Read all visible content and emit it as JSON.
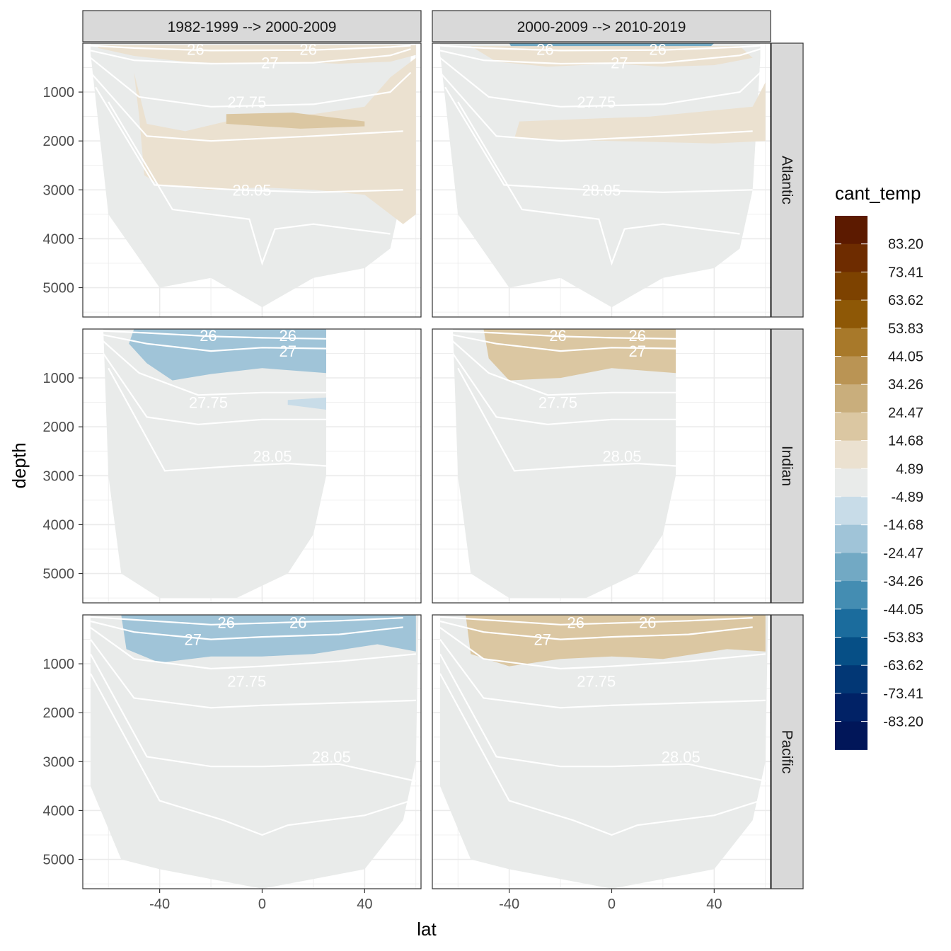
{
  "chart_data": {
    "type": "heatmap",
    "facet_columns": [
      "1982-1999 --> 2000-2009",
      "2000-2009 --> 2010-2019"
    ],
    "facet_rows": [
      "Atlantic",
      "Indian",
      "Pacific"
    ],
    "xlabel": "lat",
    "ylabel": "depth",
    "x_ticks": [
      -40,
      0,
      40
    ],
    "x_tick_labels": [
      "-40",
      "0",
      "40"
    ],
    "xlim": [
      -70,
      62
    ],
    "y_ticks": [
      1000,
      2000,
      3000,
      4000,
      5000
    ],
    "y_tick_labels": [
      "1000",
      "2000",
      "3000",
      "4000",
      "5000"
    ],
    "ylim": [
      5600,
      0
    ],
    "y_reversed": true,
    "grid": true,
    "legend": {
      "title": "cant_temp",
      "placement": "right",
      "labels": [
        "83.20",
        "73.41",
        "63.62",
        "53.83",
        "44.05",
        "34.26",
        "24.47",
        "14.68",
        "4.89",
        "-4.89",
        "-14.68",
        "-24.47",
        "-34.26",
        "-44.05",
        "-53.83",
        "-63.62",
        "-73.41",
        "-83.20"
      ],
      "colors": [
        "#5c1a00",
        "#6e2c00",
        "#7d4200",
        "#8e5806",
        "#a8792a",
        "#ba9454",
        "#c9ae7c",
        "#dbc7a2",
        "#ebe1d0",
        "#e9ebea",
        "#c8dce8",
        "#a0c4d8",
        "#72a9c4",
        "#448db2",
        "#1b6c9d",
        "#064f86",
        "#023775",
        "#012266",
        "#011659"
      ]
    },
    "isopycnal_labels": [
      "26",
      "26",
      "27",
      "27.75",
      "28.05"
    ],
    "panels": [
      {
        "col": 0,
        "row": 0,
        "isolines": [
          {
            "label": "26",
            "points": [
              [
                -26,
                120
              ],
              [
                18,
                120
              ]
            ]
          },
          {
            "label": "27",
            "points": [
              [
                3,
                400
              ]
            ]
          },
          {
            "label": "27.75",
            "points": [
              [
                -6,
                1200
              ]
            ]
          },
          {
            "label": "28.05",
            "points": [
              [
                -4,
                3000
              ]
            ]
          }
        ],
        "patches": [
          {
            "value": 10,
            "points": [
              [
                -50,
                600
              ],
              [
                -45,
                1650
              ],
              [
                -30,
                1800
              ],
              [
                -10,
                1550
              ],
              [
                20,
                1450
              ],
              [
                40,
                1300
              ],
              [
                50,
                700
              ],
              [
                60,
                300
              ],
              [
                60,
                3500
              ],
              [
                55,
                3700
              ],
              [
                40,
                3100
              ],
              [
                20,
                3000
              ],
              [
                0,
                2950
              ],
              [
                -20,
                3000
              ],
              [
                -40,
                2900
              ],
              [
                -46,
                2700
              ],
              [
                -48,
                1500
              ]
            ]
          },
          {
            "value": 20,
            "points": [
              [
                -14,
                1450
              ],
              [
                12,
                1420
              ],
              [
                40,
                1600
              ],
              [
                40,
                1700
              ],
              [
                15,
                1750
              ],
              [
                -14,
                1650
              ]
            ]
          },
          {
            "value": 10,
            "points": [
              [
                -64,
                40
              ],
              [
                60,
                40
              ],
              [
                60,
                240
              ],
              [
                50,
                380
              ],
              [
                30,
                420
              ],
              [
                10,
                380
              ],
              [
                -10,
                420
              ],
              [
                -30,
                380
              ],
              [
                -50,
                260
              ],
              [
                -64,
                100
              ]
            ]
          }
        ]
      },
      {
        "col": 1,
        "row": 0,
        "isolines": [
          {
            "label": "26",
            "points": [
              [
                -26,
                120
              ],
              [
                18,
                120
              ]
            ]
          },
          {
            "label": "27",
            "points": [
              [
                3,
                400
              ]
            ]
          },
          {
            "label": "27.75",
            "points": [
              [
                -6,
                1200
              ]
            ]
          },
          {
            "label": "28.05",
            "points": [
              [
                -4,
                3000
              ]
            ]
          }
        ],
        "patches": [
          {
            "value": -30,
            "points": [
              [
                -40,
                0
              ],
              [
                40,
                0
              ],
              [
                36,
                200
              ],
              [
                20,
                260
              ],
              [
                0,
                200
              ],
              [
                -20,
                240
              ],
              [
                -38,
                180
              ]
            ]
          },
          {
            "value": 10,
            "points": [
              [
                -55,
                60
              ],
              [
                50,
                60
              ],
              [
                55,
                300
              ],
              [
                40,
                450
              ],
              [
                20,
                480
              ],
              [
                0,
                420
              ],
              [
                -25,
                480
              ],
              [
                -45,
                380
              ]
            ]
          },
          {
            "value": 10,
            "points": [
              [
                -36,
                1600
              ],
              [
                15,
                1500
              ],
              [
                55,
                1300
              ],
              [
                60,
                800
              ],
              [
                60,
                2000
              ],
              [
                40,
                2050
              ],
              [
                0,
                2000
              ],
              [
                -38,
                1950
              ]
            ]
          }
        ]
      },
      {
        "col": 0,
        "row": 1,
        "isolines": [
          {
            "label": "26",
            "points": [
              [
                -21,
                130
              ],
              [
                10,
                130
              ]
            ]
          },
          {
            "label": "27",
            "points": [
              [
                10,
                450
              ]
            ]
          },
          {
            "label": "27.75",
            "points": [
              [
                -21,
                1500
              ]
            ]
          },
          {
            "label": "28.05",
            "points": [
              [
                4,
                2600
              ]
            ]
          }
        ],
        "patches": [
          {
            "value": -60,
            "points": [
              [
                -45,
                0
              ],
              [
                -30,
                0
              ],
              [
                -25,
                150
              ],
              [
                -35,
                230
              ],
              [
                -45,
                120
              ]
            ]
          },
          {
            "value": -20,
            "points": [
              [
                -50,
                0
              ],
              [
                25,
                0
              ],
              [
                25,
                900
              ],
              [
                0,
                800
              ],
              [
                -20,
                920
              ],
              [
                -35,
                1050
              ],
              [
                -45,
                700
              ],
              [
                -52,
                300
              ]
            ]
          },
          {
            "value": -10,
            "points": [
              [
                10,
                1450
              ],
              [
                25,
                1400
              ],
              [
                25,
                1650
              ],
              [
                10,
                1550
              ]
            ]
          }
        ]
      },
      {
        "col": 1,
        "row": 1,
        "isolines": [
          {
            "label": "26",
            "points": [
              [
                -21,
                130
              ],
              [
                10,
                130
              ]
            ]
          },
          {
            "label": "27",
            "points": [
              [
                10,
                450
              ]
            ]
          },
          {
            "label": "27.75",
            "points": [
              [
                -21,
                1500
              ]
            ]
          },
          {
            "label": "28.05",
            "points": [
              [
                4,
                2600
              ]
            ]
          }
        ],
        "patches": [
          {
            "value": 45,
            "points": [
              [
                -48,
                0
              ],
              [
                25,
                0
              ],
              [
                25,
                250
              ],
              [
                0,
                280
              ],
              [
                -20,
                420
              ],
              [
                -38,
                330
              ],
              [
                -45,
                150
              ]
            ]
          },
          {
            "value": 15,
            "points": [
              [
                -50,
                0
              ],
              [
                25,
                0
              ],
              [
                25,
                900
              ],
              [
                0,
                800
              ],
              [
                -20,
                1000
              ],
              [
                -40,
                1050
              ],
              [
                -48,
                600
              ]
            ]
          }
        ]
      },
      {
        "col": 0,
        "row": 2,
        "isolines": [
          {
            "label": "26",
            "points": [
              [
                -14,
                150
              ],
              [
                14,
                150
              ]
            ]
          },
          {
            "label": "27",
            "points": [
              [
                -27,
                500
              ]
            ]
          },
          {
            "label": "27.75",
            "points": [
              [
                -6,
                1350
              ]
            ]
          },
          {
            "label": "28.05",
            "points": [
              [
                27,
                2900
              ]
            ]
          }
        ],
        "patches": [
          {
            "value": -60,
            "points": [
              [
                -50,
                0
              ],
              [
                -5,
                0
              ],
              [
                -5,
                300
              ],
              [
                -25,
                300
              ],
              [
                -42,
                220
              ]
            ]
          },
          {
            "value": -40,
            "points": [
              [
                30,
                0
              ],
              [
                60,
                0
              ],
              [
                55,
                200
              ],
              [
                40,
                250
              ],
              [
                30,
                150
              ]
            ]
          },
          {
            "value": -15,
            "points": [
              [
                -55,
                0
              ],
              [
                60,
                0
              ],
              [
                60,
                750
              ],
              [
                45,
                600
              ],
              [
                20,
                800
              ],
              [
                0,
                850
              ],
              [
                -20,
                850
              ],
              [
                -40,
                980
              ],
              [
                -53,
                700
              ]
            ]
          }
        ]
      },
      {
        "col": 1,
        "row": 2,
        "isolines": [
          {
            "label": "26",
            "points": [
              [
                -14,
                150
              ],
              [
                14,
                150
              ]
            ]
          },
          {
            "label": "27",
            "points": [
              [
                -27,
                500
              ]
            ]
          },
          {
            "label": "27.75",
            "points": [
              [
                -6,
                1350
              ]
            ]
          },
          {
            "label": "28.05",
            "points": [
              [
                27,
                2900
              ]
            ]
          }
        ],
        "patches": [
          {
            "value": 40,
            "points": [
              [
                -50,
                0
              ],
              [
                -20,
                150
              ],
              [
                0,
                300
              ],
              [
                20,
                250
              ],
              [
                40,
                200
              ],
              [
                55,
                250
              ],
              [
                55,
                350
              ],
              [
                30,
                400
              ],
              [
                0,
                400
              ],
              [
                -25,
                350
              ],
              [
                -45,
                250
              ]
            ]
          },
          {
            "value": 15,
            "points": [
              [
                -57,
                0
              ],
              [
                60,
                0
              ],
              [
                60,
                750
              ],
              [
                45,
                700
              ],
              [
                20,
                900
              ],
              [
                0,
                850
              ],
              [
                -20,
                900
              ],
              [
                -40,
                1050
              ],
              [
                -55,
                800
              ]
            ]
          }
        ]
      }
    ]
  }
}
